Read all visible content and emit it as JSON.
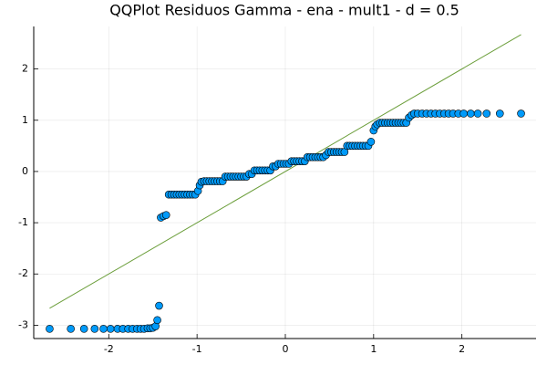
{
  "chart_data": {
    "type": "scatter",
    "title": "QQPlot Residuos Gamma - ena - mult1 - d = 0.5",
    "xlim": [
      -2.85,
      2.84
    ],
    "ylim": [
      -3.26,
      2.83
    ],
    "xticks": [
      -2,
      -1,
      0,
      1,
      2
    ],
    "yticks": [
      -3,
      -2,
      -1,
      0,
      1,
      2
    ],
    "grid": true,
    "points": {
      "color": "#009af9",
      "x": [
        -2.67,
        -2.43,
        -2.28,
        -2.16,
        -2.06,
        -1.98,
        -1.9,
        -1.84,
        -1.78,
        -1.73,
        -1.68,
        -1.64,
        -1.6,
        -1.56,
        -1.53,
        -1.5,
        -1.47,
        -1.45,
        -1.43,
        -1.41,
        -1.38,
        -1.35,
        -1.32,
        -1.29,
        -1.26,
        -1.23,
        -1.2,
        -1.17,
        -1.14,
        -1.11,
        -1.08,
        -1.05,
        -1.02,
        -0.99,
        -0.97,
        -0.95,
        -0.92,
        -0.89,
        -0.86,
        -0.83,
        -0.8,
        -0.77,
        -0.74,
        -0.71,
        -0.68,
        -0.65,
        -0.62,
        -0.59,
        -0.56,
        -0.53,
        -0.5,
        -0.47,
        -0.44,
        -0.41,
        -0.38,
        -0.35,
        -0.32,
        -0.29,
        -0.26,
        -0.23,
        -0.2,
        -0.17,
        -0.14,
        -0.11,
        -0.08,
        -0.05,
        -0.02,
        0.01,
        0.04,
        0.07,
        0.1,
        0.13,
        0.16,
        0.19,
        0.22,
        0.25,
        0.28,
        0.31,
        0.34,
        0.37,
        0.4,
        0.43,
        0.46,
        0.49,
        0.52,
        0.55,
        0.58,
        0.61,
        0.64,
        0.67,
        0.7,
        0.73,
        0.76,
        0.79,
        0.82,
        0.85,
        0.88,
        0.91,
        0.94,
        0.97,
        1.0,
        1.02,
        1.04,
        1.07,
        1.1,
        1.13,
        1.16,
        1.19,
        1.22,
        1.25,
        1.28,
        1.31,
        1.34,
        1.37,
        1.4,
        1.43,
        1.46,
        1.5,
        1.55,
        1.6,
        1.65,
        1.7,
        1.75,
        1.8,
        1.85,
        1.9,
        1.96,
        2.02,
        2.1,
        2.18,
        2.28,
        2.43,
        2.67
      ],
      "y": [
        -3.07,
        -3.07,
        -3.07,
        -3.07,
        -3.07,
        -3.07,
        -3.07,
        -3.07,
        -3.07,
        -3.07,
        -3.07,
        -3.07,
        -3.07,
        -3.06,
        -3.06,
        -3.05,
        -3.02,
        -2.9,
        -2.62,
        -0.9,
        -0.87,
        -0.85,
        -0.45,
        -0.45,
        -0.45,
        -0.45,
        -0.45,
        -0.45,
        -0.45,
        -0.45,
        -0.45,
        -0.45,
        -0.45,
        -0.38,
        -0.27,
        -0.2,
        -0.19,
        -0.19,
        -0.19,
        -0.19,
        -0.19,
        -0.19,
        -0.19,
        -0.19,
        -0.1,
        -0.1,
        -0.1,
        -0.1,
        -0.1,
        -0.1,
        -0.1,
        -0.1,
        -0.1,
        -0.05,
        -0.05,
        0.02,
        0.02,
        0.02,
        0.02,
        0.02,
        0.02,
        0.02,
        0.1,
        0.1,
        0.15,
        0.15,
        0.15,
        0.15,
        0.15,
        0.2,
        0.2,
        0.2,
        0.2,
        0.2,
        0.2,
        0.28,
        0.28,
        0.28,
        0.28,
        0.28,
        0.28,
        0.28,
        0.32,
        0.38,
        0.38,
        0.38,
        0.38,
        0.38,
        0.38,
        0.38,
        0.5,
        0.5,
        0.5,
        0.5,
        0.5,
        0.5,
        0.5,
        0.5,
        0.5,
        0.58,
        0.8,
        0.88,
        0.92,
        0.95,
        0.95,
        0.95,
        0.95,
        0.95,
        0.95,
        0.95,
        0.95,
        0.95,
        0.95,
        0.95,
        1.05,
        1.1,
        1.13,
        1.13,
        1.13,
        1.13,
        1.13,
        1.13,
        1.13,
        1.13,
        1.13,
        1.13,
        1.13,
        1.13,
        1.13,
        1.13,
        1.13,
        1.13,
        1.13
      ]
    },
    "reference_line": {
      "color": "#6b9e3a",
      "x": [
        -2.67,
        2.67
      ],
      "y": [
        -2.67,
        2.67
      ]
    }
  }
}
